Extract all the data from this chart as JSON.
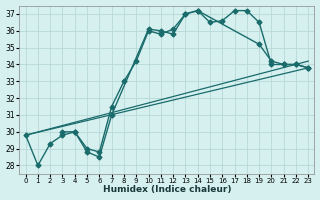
{
  "title": "",
  "xlabel": "Humidex (Indice chaleur)",
  "bg_color": "#d6f0f0",
  "grid_color": "#b8d8d8",
  "line_color": "#1a6b6b",
  "xlim": [
    -0.5,
    23.5
  ],
  "ylim": [
    27.5,
    37.5
  ],
  "yticks": [
    28,
    29,
    30,
    31,
    32,
    33,
    34,
    35,
    36,
    37
  ],
  "xticks": [
    0,
    1,
    2,
    3,
    4,
    5,
    6,
    7,
    8,
    9,
    10,
    11,
    12,
    13,
    14,
    15,
    16,
    17,
    18,
    19,
    20,
    21,
    22,
    23
  ],
  "lines": [
    {
      "x": [
        0,
        1,
        2,
        3,
        4,
        5,
        6,
        7,
        10,
        11,
        12,
        13,
        14,
        15,
        16,
        17,
        18,
        19,
        20,
        21,
        22,
        23
      ],
      "y": [
        29.8,
        28.0,
        29.3,
        29.8,
        30.0,
        28.8,
        28.5,
        31.0,
        36.1,
        36.0,
        35.8,
        37.0,
        37.2,
        36.5,
        36.6,
        37.2,
        37.2,
        36.5,
        34.0,
        34.0,
        34.0,
        33.8
      ],
      "marker": "D",
      "markersize": 2.5,
      "linewidth": 1.0,
      "has_markers": true
    },
    {
      "x": [
        3,
        4,
        5,
        6,
        7,
        8,
        9,
        10,
        11,
        12,
        13,
        14,
        19,
        20,
        21,
        22,
        23
      ],
      "y": [
        30.0,
        30.0,
        29.0,
        28.8,
        31.5,
        33.0,
        34.2,
        36.0,
        35.8,
        36.1,
        37.0,
        37.2,
        35.2,
        34.2,
        34.0,
        34.0,
        33.8
      ],
      "marker": "D",
      "markersize": 2.5,
      "linewidth": 1.0,
      "has_markers": true
    },
    {
      "x": [
        0,
        23
      ],
      "y": [
        29.8,
        33.8
      ],
      "marker": null,
      "linewidth": 0.9,
      "has_markers": false
    },
    {
      "x": [
        0,
        23
      ],
      "y": [
        29.8,
        34.2
      ],
      "marker": null,
      "linewidth": 0.9,
      "has_markers": false
    }
  ]
}
